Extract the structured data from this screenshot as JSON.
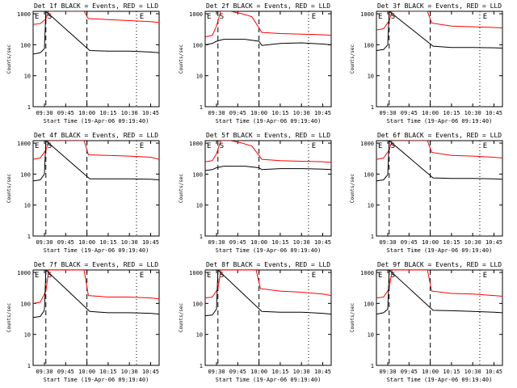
{
  "figure": {
    "xlabel": "Start Time (19-Apr-06 09:19:40)",
    "ylabel": "Counts/sec"
  },
  "chart_data": [
    {
      "type": "line",
      "title": "Det 1f BLACK = Events, RED = LLD",
      "x_ticks": [
        "09:30",
        "09:45",
        "10:00",
        "10:15",
        "10:30",
        "10:45"
      ],
      "y_ticks": [
        "1",
        "10",
        "100",
        "1000"
      ],
      "y_scale": "log",
      "ylim": [
        1,
        1000
      ],
      "markers": [
        "E",
        "S",
        "E"
      ],
      "series": [
        {
          "name": "RED = LLD",
          "color": "#ff0000",
          "x": [
            "09:22",
            "09:27",
            "09:31",
            "09:33",
            "09:58",
            "10:01",
            "10:15",
            "10:30",
            "10:45",
            "10:51"
          ],
          "y": [
            450,
            480,
            680,
            1200,
            1200,
            700,
            650,
            600,
            560,
            520
          ]
        },
        {
          "name": "BLACK = Events",
          "color": "#000000",
          "x": [
            "09:22",
            "09:27",
            "09:30",
            "09:31",
            "10:02",
            "10:15",
            "10:30",
            "10:45",
            "10:51"
          ],
          "y": [
            50,
            55,
            75,
            1200,
            65,
            62,
            62,
            58,
            55
          ]
        }
      ]
    },
    {
      "type": "line",
      "title": "Det 2f BLACK = Events, RED = LLD",
      "x_ticks": [
        "09:30",
        "09:45",
        "10:00",
        "10:15",
        "10:30",
        "10:45"
      ],
      "y_ticks": [
        "1",
        "10",
        "100",
        "1000"
      ],
      "y_scale": "log",
      "ylim": [
        1,
        1000
      ],
      "markers": [
        "E",
        "S",
        "E"
      ],
      "series": [
        {
          "name": "RED = LLD",
          "color": "#ff0000",
          "x": [
            "09:22",
            "09:27",
            "09:30",
            "09:33",
            "09:40",
            "09:48",
            "09:55",
            "10:00",
            "10:02",
            "10:15",
            "10:30",
            "10:45",
            "10:51"
          ],
          "y": [
            180,
            200,
            400,
            1200,
            1200,
            1000,
            800,
            350,
            250,
            230,
            220,
            210,
            200
          ]
        },
        {
          "name": "BLACK = Events",
          "color": "#000000",
          "x": [
            "09:22",
            "09:27",
            "09:30",
            "09:35",
            "09:50",
            "10:00",
            "10:02",
            "10:15",
            "10:30",
            "10:45",
            "10:51"
          ],
          "y": [
            100,
            110,
            130,
            150,
            150,
            130,
            95,
            110,
            115,
            105,
            100
          ]
        }
      ]
    },
    {
      "type": "line",
      "title": "Det 3f BLACK = Events, RED = LLD",
      "x_ticks": [
        "09:30",
        "09:45",
        "10:00",
        "10:15",
        "10:30",
        "10:45"
      ],
      "y_ticks": [
        "1",
        "10",
        "100",
        "1000"
      ],
      "y_scale": "log",
      "ylim": [
        1,
        1000
      ],
      "markers": [
        "E",
        "S",
        "E"
      ],
      "series": [
        {
          "name": "RED = LLD",
          "color": "#ff0000",
          "x": [
            "09:22",
            "09:27",
            "09:31",
            "09:33",
            "09:58",
            "10:01",
            "10:15",
            "10:30",
            "10:45",
            "10:51"
          ],
          "y": [
            300,
            330,
            600,
            1200,
            1200,
            500,
            400,
            380,
            360,
            350
          ]
        },
        {
          "name": "BLACK = Events",
          "color": "#000000",
          "x": [
            "09:22",
            "09:27",
            "09:30",
            "09:31",
            "10:02",
            "10:15",
            "10:30",
            "10:45",
            "10:51"
          ],
          "y": [
            65,
            70,
            100,
            1200,
            90,
            82,
            82,
            80,
            78
          ]
        }
      ]
    },
    {
      "type": "line",
      "title": "Det 4f BLACK = Events, RED = LLD",
      "x_ticks": [
        "09:30",
        "09:45",
        "10:00",
        "10:15",
        "10:30",
        "10:45"
      ],
      "y_ticks": [
        "1",
        "10",
        "100",
        "1000"
      ],
      "y_scale": "log",
      "ylim": [
        1,
        1000
      ],
      "markers": [
        "E",
        "S",
        "E"
      ],
      "series": [
        {
          "name": "RED = LLD",
          "color": "#ff0000",
          "x": [
            "09:22",
            "09:27",
            "09:31",
            "09:33",
            "09:58",
            "10:01",
            "10:15",
            "10:30",
            "10:45",
            "10:51"
          ],
          "y": [
            300,
            330,
            600,
            1200,
            1200,
            420,
            400,
            380,
            350,
            300
          ]
        },
        {
          "name": "BLACK = Events",
          "color": "#000000",
          "x": [
            "09:22",
            "09:27",
            "09:30",
            "09:31",
            "10:02",
            "10:15",
            "10:30",
            "10:45",
            "10:51"
          ],
          "y": [
            60,
            65,
            100,
            1200,
            70,
            70,
            70,
            68,
            65
          ]
        }
      ]
    },
    {
      "type": "line",
      "title": "Det 5f BLACK = Events, RED = LLD",
      "x_ticks": [
        "09:30",
        "09:45",
        "10:00",
        "10:15",
        "10:30",
        "10:45"
      ],
      "y_ticks": [
        "1",
        "10",
        "100",
        "1000"
      ],
      "y_scale": "log",
      "ylim": [
        1,
        1000
      ],
      "markers": [
        "E",
        "S",
        "E"
      ],
      "series": [
        {
          "name": "RED = LLD",
          "color": "#ff0000",
          "x": [
            "09:22",
            "09:27",
            "09:30",
            "09:33",
            "09:40",
            "09:48",
            "09:55",
            "10:00",
            "10:02",
            "10:15",
            "10:30",
            "10:45",
            "10:51"
          ],
          "y": [
            250,
            270,
            450,
            1200,
            1200,
            1000,
            800,
            400,
            300,
            270,
            260,
            250,
            240
          ]
        },
        {
          "name": "BLACK = Events",
          "color": "#000000",
          "x": [
            "09:22",
            "09:27",
            "09:30",
            "09:35",
            "09:50",
            "10:00",
            "10:02",
            "10:15",
            "10:30",
            "10:45",
            "10:51"
          ],
          "y": [
            130,
            140,
            160,
            180,
            180,
            160,
            140,
            150,
            150,
            145,
            140
          ]
        }
      ]
    },
    {
      "type": "line",
      "title": "Det 6f BLACK = Events, RED = LLD",
      "x_ticks": [
        "09:30",
        "09:45",
        "10:00",
        "10:15",
        "10:30",
        "10:45"
      ],
      "y_ticks": [
        "1",
        "10",
        "100",
        "1000"
      ],
      "y_scale": "log",
      "ylim": [
        1,
        1000
      ],
      "markers": [
        "E",
        "S",
        "E"
      ],
      "series": [
        {
          "name": "RED = LLD",
          "color": "#ff0000",
          "x": [
            "09:22",
            "09:27",
            "09:31",
            "09:33",
            "09:58",
            "10:01",
            "10:15",
            "10:30",
            "10:45",
            "10:51"
          ],
          "y": [
            300,
            330,
            600,
            1200,
            1200,
            500,
            400,
            380,
            350,
            330
          ]
        },
        {
          "name": "BLACK = Events",
          "color": "#000000",
          "x": [
            "09:22",
            "09:27",
            "09:30",
            "09:31",
            "10:02",
            "10:15",
            "10:30",
            "10:45",
            "10:51"
          ],
          "y": [
            60,
            65,
            95,
            1200,
            75,
            72,
            72,
            70,
            68
          ]
        }
      ]
    },
    {
      "type": "line",
      "title": "Det 7f BLACK = Events, RED = LLD",
      "x_ticks": [
        "09:30",
        "09:45",
        "10:00",
        "10:15",
        "10:30",
        "10:45"
      ],
      "y_ticks": [
        "1",
        "10",
        "100",
        "1000"
      ],
      "y_scale": "log",
      "ylim": [
        1,
        1000
      ],
      "markers": [
        "E",
        "S",
        "E"
      ],
      "series": [
        {
          "name": "RED = LLD",
          "color": "#ff0000",
          "x": [
            "09:22",
            "09:27",
            "09:31",
            "09:33",
            "09:58",
            "10:01",
            "10:15",
            "10:30",
            "10:45",
            "10:51"
          ],
          "y": [
            100,
            110,
            250,
            1200,
            1200,
            180,
            160,
            160,
            150,
            140
          ]
        },
        {
          "name": "BLACK = Events",
          "color": "#000000",
          "x": [
            "09:22",
            "09:27",
            "09:30",
            "09:31",
            "10:02",
            "10:15",
            "10:30",
            "10:45",
            "10:51"
          ],
          "y": [
            35,
            38,
            60,
            1200,
            55,
            50,
            50,
            48,
            45
          ]
        }
      ]
    },
    {
      "type": "line",
      "title": "Det 8f BLACK = Events, RED = LLD",
      "x_ticks": [
        "09:30",
        "09:45",
        "10:00",
        "10:15",
        "10:30",
        "10:45"
      ],
      "y_ticks": [
        "1",
        "10",
        "100",
        "1000"
      ],
      "y_scale": "log",
      "ylim": [
        1,
        1000
      ],
      "markers": [
        "E",
        "S",
        "E"
      ],
      "series": [
        {
          "name": "RED = LLD",
          "color": "#ff0000",
          "x": [
            "09:22",
            "09:27",
            "09:31",
            "09:33",
            "09:58",
            "10:01",
            "10:15",
            "10:30",
            "10:45",
            "10:51"
          ],
          "y": [
            150,
            160,
            300,
            1200,
            1200,
            300,
            250,
            230,
            200,
            180
          ]
        },
        {
          "name": "BLACK = Events",
          "color": "#000000",
          "x": [
            "09:22",
            "09:27",
            "09:30",
            "09:31",
            "10:02",
            "10:15",
            "10:30",
            "10:45",
            "10:51"
          ],
          "y": [
            40,
            42,
            65,
            1200,
            55,
            52,
            52,
            48,
            45
          ]
        }
      ]
    },
    {
      "type": "line",
      "title": "Det 9f BLACK = Events, RED = LLD",
      "x_ticks": [
        "09:30",
        "09:45",
        "10:00",
        "10:15",
        "10:30",
        "10:45"
      ],
      "y_ticks": [
        "1",
        "10",
        "100",
        "1000"
      ],
      "y_scale": "log",
      "ylim": [
        1,
        1000
      ],
      "markers": [
        "E",
        "S",
        "E"
      ],
      "series": [
        {
          "name": "RED = LLD",
          "color": "#ff0000",
          "x": [
            "09:22",
            "09:27",
            "09:31",
            "09:33",
            "09:58",
            "10:01",
            "10:15",
            "10:30",
            "10:45",
            "10:51"
          ],
          "y": [
            150,
            160,
            300,
            1200,
            1200,
            250,
            210,
            200,
            180,
            170
          ]
        },
        {
          "name": "BLACK = Events",
          "color": "#000000",
          "x": [
            "09:22",
            "09:27",
            "09:30",
            "09:31",
            "10:02",
            "10:15",
            "10:30",
            "10:45",
            "10:51"
          ],
          "y": [
            45,
            50,
            65,
            1200,
            60,
            58,
            55,
            52,
            50
          ]
        }
      ]
    }
  ]
}
